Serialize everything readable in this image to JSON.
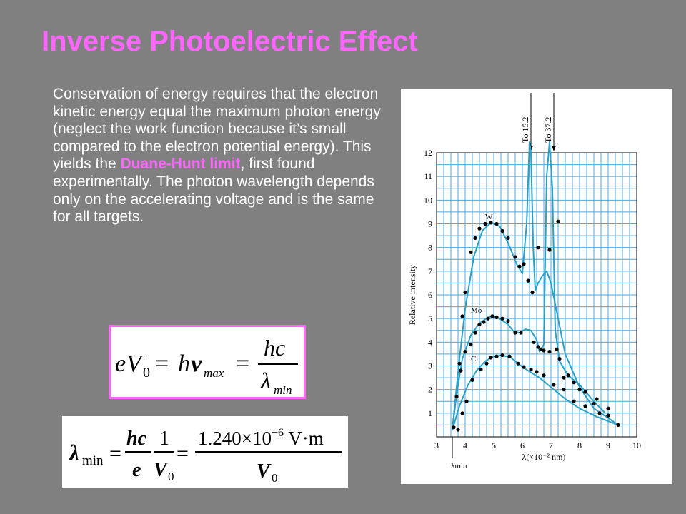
{
  "slide": {
    "title": "Inverse Photoelectric Effect",
    "text_parts": [
      "Conservation of energy requires that the electron kinetic energy equal the maximum photon energy (neglect the work function because it’s small compared to the electron potential energy). This yields the ",
      "Duane-Hunt limit",
      ", first found experimentally. The photon wavelength depends only on the accelerating voltage and is the same for all targets."
    ],
    "colors": {
      "title": "#ff66ff",
      "highlight": "#ff66ff",
      "background": "#808080",
      "text": "#ffffff"
    }
  },
  "equation1": {
    "lhs_e": "e",
    "lhs_V": "V",
    "lhs_sub": "0",
    "eq": "=",
    "h": "h",
    "nu": "ν",
    "nu_sub": "max",
    "eq2": "=",
    "num": "hc",
    "lambda": "λ",
    "lambda_sub": "min"
  },
  "equation2": {
    "lambda": "λ",
    "lambda_sub": "min",
    "eq": "=",
    "num1": "hc",
    "den1": "e",
    "num2": "1",
    "den2_V": "V",
    "den2_sub": "0",
    "eq2": "=",
    "num3": "1.240×10",
    "exp": "−6",
    "unit": " V·m",
    "den3_V": "V",
    "den3_sub": "0"
  },
  "chart_data": {
    "type": "line",
    "xlabel": "λ(×10⁻² nm)",
    "ylabel": "Relative intensity",
    "xlim": [
      3,
      10
    ],
    "ylim": [
      0,
      12
    ],
    "x_ticks": [
      "3",
      "4",
      "5",
      "6",
      "7",
      "8",
      "9",
      "10"
    ],
    "y_ticks": [
      "1",
      "2",
      "3",
      "4",
      "5",
      "6",
      "7",
      "8",
      "9",
      "10",
      "11",
      "12"
    ],
    "lambda_min_label": "λmin",
    "lambda_min_value": 3.55,
    "grid": true,
    "annotations": [
      {
        "text": "To 15.2",
        "x": 6.3
      },
      {
        "text": "To 37.2",
        "x": 7.1
      }
    ],
    "series": [
      {
        "name": "W",
        "color": "#2aa0c8",
        "x": [
          3.55,
          3.8,
          4.0,
          4.3,
          4.6,
          4.9,
          5.2,
          5.5,
          5.8,
          6.0,
          6.15,
          6.25,
          6.3,
          6.38,
          6.45,
          6.55,
          6.7,
          6.85,
          7.0,
          7.5,
          8.0,
          8.5,
          9.0,
          9.35
        ],
        "y": [
          0.3,
          3.3,
          5.4,
          7.6,
          8.7,
          9.05,
          8.9,
          8.2,
          7.3,
          6.9,
          9.0,
          14.5,
          12.0,
          8.0,
          6.2,
          6.5,
          6.8,
          7.0,
          6.5,
          3.5,
          2.1,
          1.2,
          0.8,
          0.5
        ]
      },
      {
        "name": "Mo",
        "color": "#2aa0c8",
        "x": [
          3.55,
          3.7,
          3.9,
          4.2,
          4.5,
          4.8,
          5.0,
          5.2,
          5.5,
          5.7,
          5.9,
          6.1,
          6.3,
          6.5,
          6.6,
          6.75,
          6.85,
          6.95,
          7.05,
          7.15,
          7.3,
          7.6,
          8.0,
          8.5,
          8.9
        ],
        "y": [
          0.3,
          1.8,
          3.3,
          4.3,
          4.8,
          5.05,
          5.1,
          5.0,
          4.75,
          4.45,
          4.4,
          4.55,
          4.5,
          4.1,
          3.6,
          3.9,
          11.0,
          14.0,
          10.5,
          4.5,
          3.2,
          2.6,
          2.2,
          1.5,
          1.0
        ]
      },
      {
        "name": "Cr",
        "color": "#2aa0c8",
        "x": [
          3.55,
          3.8,
          4.1,
          4.4,
          4.7,
          5.0,
          5.3,
          5.6,
          5.9,
          6.2,
          6.6,
          7.0,
          7.5,
          8.0,
          8.6,
          9.35
        ],
        "y": [
          0.3,
          1.3,
          2.2,
          2.8,
          3.2,
          3.4,
          3.45,
          3.35,
          3.05,
          2.8,
          2.5,
          2.1,
          1.6,
          1.2,
          0.85,
          0.5
        ]
      }
    ],
    "series_labels": [
      {
        "text": "W",
        "x": 4.7,
        "y": 9.2
      },
      {
        "text": "Mo",
        "x": 4.2,
        "y": 5.25
      },
      {
        "text": "Cr",
        "x": 4.2,
        "y": 3.2
      }
    ],
    "points_w": [
      [
        3.6,
        0.4
      ],
      [
        3.8,
        3.1
      ],
      [
        3.9,
        5.1
      ],
      [
        4.0,
        6.1
      ],
      [
        4.2,
        7.8
      ],
      [
        4.35,
        8.4
      ],
      [
        4.5,
        8.8
      ],
      [
        4.7,
        9.0
      ],
      [
        4.9,
        9.05
      ],
      [
        5.1,
        9.0
      ],
      [
        5.3,
        8.7
      ],
      [
        5.5,
        8.4
      ],
      [
        5.75,
        7.6
      ],
      [
        5.9,
        7.2
      ],
      [
        6.05,
        7.3
      ],
      [
        6.2,
        6.6
      ],
      [
        6.35,
        6.1
      ],
      [
        6.55,
        8.0
      ],
      [
        6.95,
        7.9
      ],
      [
        7.25,
        9.1
      ],
      [
        7.3,
        3.3
      ],
      [
        7.6,
        2.6
      ],
      [
        8.0,
        2.0
      ],
      [
        8.5,
        1.4
      ],
      [
        9.0,
        0.9
      ]
    ],
    "points_mo": [
      [
        3.7,
        1.7
      ],
      [
        3.85,
        2.8
      ],
      [
        4.0,
        3.6
      ],
      [
        4.2,
        3.9
      ],
      [
        4.35,
        4.4
      ],
      [
        4.5,
        4.75
      ],
      [
        4.65,
        4.85
      ],
      [
        4.8,
        5.0
      ],
      [
        4.95,
        5.1
      ],
      [
        5.1,
        5.05
      ],
      [
        5.3,
        5.0
      ],
      [
        5.5,
        4.9
      ],
      [
        5.75,
        4.4
      ],
      [
        5.95,
        4.4
      ],
      [
        6.4,
        4.0
      ],
      [
        6.55,
        3.8
      ],
      [
        6.65,
        3.7
      ],
      [
        6.75,
        3.65
      ],
      [
        6.95,
        3.6
      ],
      [
        7.2,
        3.7
      ],
      [
        7.45,
        2.5
      ],
      [
        7.8,
        2.3
      ],
      [
        8.2,
        1.9
      ],
      [
        8.6,
        1.6
      ],
      [
        9.0,
        1.2
      ]
    ],
    "points_cr": [
      [
        3.75,
        0.3
      ],
      [
        3.9,
        1.0
      ],
      [
        4.05,
        1.5
      ],
      [
        4.25,
        2.4
      ],
      [
        4.55,
        2.85
      ],
      [
        4.75,
        3.1
      ],
      [
        4.9,
        3.35
      ],
      [
        5.1,
        3.4
      ],
      [
        5.3,
        3.45
      ],
      [
        5.55,
        3.4
      ],
      [
        5.85,
        3.1
      ],
      [
        6.05,
        2.95
      ],
      [
        6.3,
        2.85
      ],
      [
        6.5,
        2.75
      ],
      [
        6.75,
        2.6
      ],
      [
        7.1,
        2.2
      ],
      [
        7.45,
        2.0
      ],
      [
        7.8,
        1.5
      ],
      [
        8.2,
        1.3
      ],
      [
        8.7,
        1.0
      ],
      [
        9.35,
        0.5
      ]
    ]
  }
}
